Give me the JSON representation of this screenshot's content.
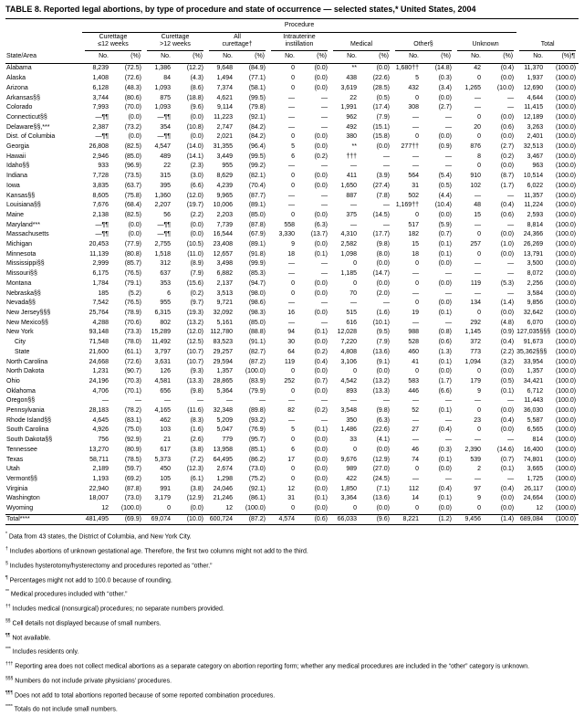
{
  "title": "TABLE 8. Reported legal abortions, by type of procedure and state of occurrence — selected states,* United States, 2004",
  "table": {
    "procedure_label": "Procedure",
    "state_area_label": "State/Area",
    "col_groups": [
      {
        "line1": "Curettage",
        "line2": "≤12 weeks"
      },
      {
        "line1": "Curettage",
        "line2": ">12 weeks"
      },
      {
        "line1": "All",
        "line2": "curettage†"
      },
      {
        "line1": "Intrauterine",
        "line2": "instillation"
      },
      {
        "line1": "Medical",
        "line2": ""
      },
      {
        "line1": "Other§",
        "line2": ""
      },
      {
        "line1": "Unknown",
        "line2": ""
      },
      {
        "line1": "Total",
        "line2": ""
      }
    ],
    "sub_headers": {
      "no": "No.",
      "pct": "(%)",
      "pct_total": "(%)¶"
    },
    "rows": [
      {
        "state": "Alabama",
        "cells": [
          "8,239",
          "(72.5)",
          "1,386",
          "(12.2)",
          "9,648",
          "(84.9)",
          "0",
          "(0.0)",
          "**",
          "(0.0)",
          "1,680††",
          "(14.8)",
          "42",
          "(0.4)",
          "11,370",
          "(100.0)"
        ]
      },
      {
        "state": "Alaska",
        "cells": [
          "1,408",
          "(72.6)",
          "84",
          "(4.3)",
          "1,494",
          "(77.1)",
          "0",
          "(0.0)",
          "438",
          "(22.6)",
          "5",
          "(0.3)",
          "0",
          "(0.0)",
          "1,937",
          "(100.0)"
        ]
      },
      {
        "state": "Arizona",
        "cells": [
          "6,128",
          "(48.3)",
          "1,093",
          "(8.6)",
          "7,374",
          "(58.1)",
          "0",
          "(0.0)",
          "3,619",
          "(28.5)",
          "432",
          "(3.4)",
          "1,265",
          "(10.0)",
          "12,690",
          "(100.0)"
        ]
      },
      {
        "state": "Arkansas§§",
        "cells": [
          "3,744",
          "(80.6)",
          "875",
          "(18.8)",
          "4,621",
          "(99.5)",
          "—",
          "—",
          "22",
          "(0.5)",
          "0",
          "(0.0)",
          "—",
          "—",
          "4,644",
          "(100.0)"
        ]
      },
      {
        "state": "Colorado",
        "cells": [
          "7,993",
          "(70.0)",
          "1,093",
          "(9.6)",
          "9,114",
          "(79.8)",
          "—",
          "—",
          "1,991",
          "(17.4)",
          "308",
          "(2.7)",
          "—",
          "—",
          "11,415",
          "(100.0)"
        ]
      },
      {
        "state": "Connecticut§§",
        "cells": [
          "—¶¶",
          "(0.0)",
          "—¶¶",
          "(0.0)",
          "11,223",
          "(92.1)",
          "—",
          "—",
          "962",
          "(7.9)",
          "—",
          "—",
          "0",
          "(0.0)",
          "12,189",
          "(100.0)"
        ]
      },
      {
        "state": "Delaware§§,***",
        "cells": [
          "2,387",
          "(73.2)",
          "354",
          "(10.8)",
          "2,747",
          "(84.2)",
          "—",
          "—",
          "492",
          "(15.1)",
          "—",
          "—",
          "20",
          "(0.6)",
          "3,263",
          "(100.0)"
        ]
      },
      {
        "state": "Dist. of Columbia",
        "cells": [
          "—¶¶",
          "(0.0)",
          "—¶¶",
          "(0.0)",
          "2,021",
          "(84.2)",
          "0",
          "(0.0)",
          "380",
          "(15.8)",
          "0",
          "(0.0)",
          "0",
          "(0.0)",
          "2,401",
          "(100.0)"
        ]
      },
      {
        "state": "Georgia",
        "cells": [
          "26,808",
          "(82.5)",
          "4,547",
          "(14.0)",
          "31,355",
          "(96.4)",
          "5",
          "(0.0)",
          "**",
          "(0.0)",
          "277††",
          "(0.9)",
          "876",
          "(2.7)",
          "32,513",
          "(100.0)"
        ]
      },
      {
        "state": "Hawaii",
        "cells": [
          "2,946",
          "(85.0)",
          "489",
          "(14.1)",
          "3,449",
          "(99.5)",
          "6",
          "(0.2)",
          "†††",
          "—",
          "—",
          "—",
          "8",
          "(0.2)",
          "3,467",
          "(100.0)"
        ]
      },
      {
        "state": "Idaho§§",
        "cells": [
          "933",
          "(96.9)",
          "22",
          "(2.3)",
          "955",
          "(99.2)",
          "—",
          "—",
          "—",
          "—",
          "—",
          "—",
          "0",
          "(0.0)",
          "963",
          "(100.0)"
        ]
      },
      {
        "state": "Indiana",
        "cells": [
          "7,728",
          "(73.5)",
          "315",
          "(3.0)",
          "8,629",
          "(82.1)",
          "0",
          "(0.0)",
          "411",
          "(3.9)",
          "564",
          "(5.4)",
          "910",
          "(8.7)",
          "10,514",
          "(100.0)"
        ]
      },
      {
        "state": "Iowa",
        "cells": [
          "3,835",
          "(63.7)",
          "395",
          "(6.6)",
          "4,239",
          "(70.4)",
          "0",
          "(0.0)",
          "1,650",
          "(27.4)",
          "31",
          "(0.5)",
          "102",
          "(1.7)",
          "6,022",
          "(100.0)"
        ]
      },
      {
        "state": "Kansas§§",
        "cells": [
          "8,605",
          "(75.8)",
          "1,360",
          "(12.0)",
          "9,965",
          "(87.7)",
          "—",
          "—",
          "887",
          "(7.8)",
          "502",
          "(4.4)",
          "—",
          "—",
          "11,357",
          "(100.0)"
        ]
      },
      {
        "state": "Louisiana§§",
        "cells": [
          "7,676",
          "(68.4)",
          "2,207",
          "(19.7)",
          "10,006",
          "(89.1)",
          "—",
          "—",
          "—",
          "—",
          "1,169††",
          "(10.4)",
          "48",
          "(0.4)",
          "11,224",
          "(100.0)"
        ]
      },
      {
        "state": "Maine",
        "cells": [
          "2,138",
          "(82.5)",
          "56",
          "(2.2)",
          "2,203",
          "(85.0)",
          "0",
          "(0.0)",
          "375",
          "(14.5)",
          "0",
          "(0.0)",
          "15",
          "(0.6)",
          "2,593",
          "(100.0)"
        ]
      },
      {
        "state": "Maryland***",
        "cells": [
          "—¶¶",
          "(0.0)",
          "—¶¶",
          "(0.0)",
          "7,739",
          "(87.8)",
          "558",
          "(6.3)",
          "—",
          "—",
          "517",
          "(5.9)",
          "—",
          "—",
          "8,814",
          "(100.0)"
        ]
      },
      {
        "state": "Massachusetts",
        "cells": [
          "—¶¶",
          "(0.0)",
          "—¶¶",
          "(0.0)",
          "16,544",
          "(67.9)",
          "3,330",
          "(13.7)",
          "4,310",
          "(17.7)",
          "182",
          "(0.7)",
          "0",
          "(0.0)",
          "24,366",
          "(100.0)"
        ]
      },
      {
        "state": "Michigan",
        "cells": [
          "20,453",
          "(77.9)",
          "2,755",
          "(10.5)",
          "23,408",
          "(89.1)",
          "9",
          "(0.0)",
          "2,582",
          "(9.8)",
          "15",
          "(0.1)",
          "257",
          "(1.0)",
          "26,269",
          "(100.0)"
        ]
      },
      {
        "state": "Minnesota",
        "cells": [
          "11,139",
          "(80.8)",
          "1,518",
          "(11.0)",
          "12,657",
          "(91.8)",
          "18",
          "(0.1)",
          "1,098",
          "(8.0)",
          "18",
          "(0.1)",
          "0",
          "(0.0)",
          "13,791",
          "(100.0)"
        ]
      },
      {
        "state": "Mississippi§§",
        "cells": [
          "2,999",
          "(85.7)",
          "312",
          "(8.9)",
          "3,498",
          "(99.9)",
          "—",
          "—",
          "0",
          "(0.0)",
          "0",
          "(0.0)",
          "—",
          "—",
          "3,500",
          "(100.0)"
        ]
      },
      {
        "state": "Missouri§§",
        "cells": [
          "6,175",
          "(76.5)",
          "637",
          "(7.9)",
          "6,882",
          "(85.3)",
          "—",
          "—",
          "1,185",
          "(14.7)",
          "—",
          "—",
          "—",
          "—",
          "8,072",
          "(100.0)"
        ]
      },
      {
        "state": "Montana",
        "cells": [
          "1,784",
          "(79.1)",
          "353",
          "(15.6)",
          "2,137",
          "(94.7)",
          "0",
          "(0.0)",
          "0",
          "(0.0)",
          "0",
          "(0.0)",
          "119",
          "(5.3)",
          "2,256",
          "(100.0)"
        ]
      },
      {
        "state": "Nebraska§§",
        "cells": [
          "185",
          "(5.2)",
          "6",
          "(0.2)",
          "3,513",
          "(98.0)",
          "0",
          "(0.0)",
          "70",
          "(2.0)",
          "—",
          "—",
          "—",
          "—",
          "3,584",
          "(100.0)"
        ]
      },
      {
        "state": "Nevada§§",
        "cells": [
          "7,542",
          "(76.5)",
          "955",
          "(9.7)",
          "9,721",
          "(98.6)",
          "—",
          "—",
          "—",
          "—",
          "0",
          "(0.0)",
          "134",
          "(1.4)",
          "9,856",
          "(100.0)"
        ]
      },
      {
        "state": "New Jersey§§§",
        "cells": [
          "25,764",
          "(78.9)",
          "6,315",
          "(19.3)",
          "32,092",
          "(98.3)",
          "16",
          "(0.0)",
          "515",
          "(1.6)",
          "19",
          "(0.1)",
          "0",
          "(0.0)",
          "32,642",
          "(100.0)"
        ]
      },
      {
        "state": "New Mexico§§",
        "cells": [
          "4,288",
          "(70.6)",
          "802",
          "(13.2)",
          "5,161",
          "(85.0)",
          "—",
          "—",
          "616",
          "(10.1)",
          "—",
          "—",
          "292",
          "(4.8)",
          "6,070",
          "(100.0)"
        ]
      },
      {
        "state": "New York",
        "cells": [
          "93,148",
          "(73.3)",
          "15,289",
          "(12.0)",
          "112,780",
          "(88.8)",
          "94",
          "(0.1)",
          "12,028",
          "(9.5)",
          "988",
          "(0.8)",
          "1,145",
          "(0.9)",
          "127,035§§§",
          "(100.0)"
        ]
      },
      {
        "state": "City",
        "indent": true,
        "cells": [
          "71,548",
          "(78.0)",
          "11,492",
          "(12.5)",
          "83,523",
          "(91.1)",
          "30",
          "(0.0)",
          "7,220",
          "(7.9)",
          "528",
          "(0.6)",
          "372",
          "(0.4)",
          "91,673",
          "(100.0)"
        ]
      },
      {
        "state": "State",
        "indent": true,
        "cells": [
          "21,600",
          "(61.1)",
          "3,797",
          "(10.7)",
          "29,257",
          "(82.7)",
          "64",
          "(0.2)",
          "4,808",
          "(13.6)",
          "460",
          "(1.3)",
          "773",
          "(2.2)",
          "35,362§§§",
          "(100.0)"
        ]
      },
      {
        "state": "North Carolina",
        "cells": [
          "24,668",
          "(72.6)",
          "3,631",
          "(10.7)",
          "29,594",
          "(87.2)",
          "119",
          "(0.4)",
          "3,106",
          "(9.1)",
          "41",
          "(0.1)",
          "1,094",
          "(3.2)",
          "33,954",
          "(100.0)"
        ]
      },
      {
        "state": "North Dakota",
        "cells": [
          "1,231",
          "(90.7)",
          "126",
          "(9.3)",
          "1,357",
          "(100.0)",
          "0",
          "(0.0)",
          "0",
          "(0.0)",
          "0",
          "(0.0)",
          "0",
          "(0.0)",
          "1,357",
          "(100.0)"
        ]
      },
      {
        "state": "Ohio",
        "cells": [
          "24,196",
          "(70.3)",
          "4,581",
          "(13.3)",
          "28,865",
          "(83.9)",
          "252",
          "(0.7)",
          "4,542",
          "(13.2)",
          "583",
          "(1.7)",
          "179",
          "(0.5)",
          "34,421",
          "(100.0)"
        ]
      },
      {
        "state": "Oklahoma",
        "cells": [
          "4,706",
          "(70.1)",
          "656",
          "(9.8)",
          "5,364",
          "(79.9)",
          "0",
          "(0.0)",
          "893",
          "(13.3)",
          "446",
          "(6.6)",
          "9",
          "(0.1)",
          "6,712",
          "(100.0)"
        ]
      },
      {
        "state": "Oregon§§",
        "cells": [
          "—",
          "—",
          "—",
          "—",
          "—",
          "—",
          "—",
          "—",
          "—",
          "—",
          "—",
          "—",
          "—",
          "—",
          "11,443",
          "(100.0)"
        ]
      },
      {
        "state": "Pennsylvania",
        "cells": [
          "28,183",
          "(78.2)",
          "4,165",
          "(11.6)",
          "32,348",
          "(89.8)",
          "82",
          "(0.2)",
          "3,548",
          "(9.8)",
          "52",
          "(0.1)",
          "0",
          "(0.0)",
          "36,030",
          "(100.0)"
        ]
      },
      {
        "state": "Rhode Island§§",
        "cells": [
          "4,645",
          "(83.1)",
          "462",
          "(8.3)",
          "5,209",
          "(93.2)",
          "—",
          "—",
          "350",
          "(6.3)",
          "—",
          "—",
          "23",
          "(0.4)",
          "5,587",
          "(100.0)"
        ]
      },
      {
        "state": "South Carolina",
        "cells": [
          "4,926",
          "(75.0)",
          "103",
          "(1.6)",
          "5,047",
          "(76.9)",
          "5",
          "(0.1)",
          "1,486",
          "(22.6)",
          "27",
          "(0.4)",
          "0",
          "(0.0)",
          "6,565",
          "(100.0)"
        ]
      },
      {
        "state": "South Dakota§§",
        "cells": [
          "756",
          "(92.9)",
          "21",
          "(2.6)",
          "779",
          "(95.7)",
          "0",
          "(0.0)",
          "33",
          "(4.1)",
          "—",
          "—",
          "—",
          "—",
          "814",
          "(100.0)"
        ]
      },
      {
        "state": "Tennessee",
        "cells": [
          "13,270",
          "(80.9)",
          "617",
          "(3.8)",
          "13,958",
          "(85.1)",
          "6",
          "(0.0)",
          "0",
          "(0.0)",
          "46",
          "(0.3)",
          "2,390",
          "(14.6)",
          "16,400",
          "(100.0)"
        ]
      },
      {
        "state": "Texas",
        "cells": [
          "58,711",
          "(78.5)",
          "5,373",
          "(7.2)",
          "64,495",
          "(86.2)",
          "17",
          "(0.0)",
          "9,676",
          "(12.9)",
          "74",
          "(0.1)",
          "539",
          "(0.7)",
          "74,801",
          "(100.0)"
        ]
      },
      {
        "state": "Utah",
        "cells": [
          "2,189",
          "(59.7)",
          "450",
          "(12.3)",
          "2,674",
          "(73.0)",
          "0",
          "(0.0)",
          "989",
          "(27.0)",
          "0",
          "(0.0)",
          "2",
          "(0.1)",
          "3,665",
          "(100.0)"
        ]
      },
      {
        "state": "Vermont§§",
        "cells": [
          "1,193",
          "(69.2)",
          "105",
          "(6.1)",
          "1,298",
          "(75.2)",
          "0",
          "(0.0)",
          "422",
          "(24.5)",
          "—",
          "—",
          "—",
          "—",
          "1,725",
          "(100.0)"
        ]
      },
      {
        "state": "Virginia",
        "cells": [
          "22,940",
          "(87.8)",
          "991",
          "(3.8)",
          "24,046",
          "(92.1)",
          "12",
          "(0.0)",
          "1,850",
          "(7.1)",
          "112",
          "(0.4)",
          "97",
          "(0.4)",
          "26,117",
          "(100.0)"
        ]
      },
      {
        "state": "Washington",
        "cells": [
          "18,007",
          "(73.0)",
          "3,179",
          "(12.9)",
          "21,246",
          "(86.1)",
          "31",
          "(0.1)",
          "3,364",
          "(13.6)",
          "14",
          "(0.1)",
          "9",
          "(0.0)",
          "24,664",
          "(100.0)"
        ]
      },
      {
        "state": "Wyoming",
        "cells": [
          "12",
          "(100.0)",
          "0",
          "(0.0)",
          "12",
          "(100.0)",
          "0",
          "(0.0)",
          "0",
          "(0.0)",
          "0",
          "(0.0)",
          "0",
          "(0.0)",
          "12",
          "(100.0)"
        ]
      }
    ],
    "total_row": {
      "state": "Total****",
      "cells": [
        "481,495",
        "(69.9)",
        "69,074",
        "(10.0)",
        "600,724",
        "(87.2)",
        "4,574",
        "(0.6)",
        "66,033",
        "(9.6)",
        "8,221",
        "(1.2)",
        "9,456",
        "(1.4)",
        "689,084",
        "(100.0)"
      ]
    }
  },
  "footnotes": [
    {
      "marker": "*",
      "text": "Data from 43 states, the District of Columbia, and New York City."
    },
    {
      "marker": "†",
      "text": "Includes abortions of unknown gestational age. Therefore, the first two columns might not add to the third."
    },
    {
      "marker": "§",
      "text": "Includes hysterotomy/hysterectomy and procedures reported as “other.”"
    },
    {
      "marker": "¶",
      "text": "Percentages might not add to 100.0 because of rounding."
    },
    {
      "marker": "**",
      "text": "Medical procedures included with “other.”"
    },
    {
      "marker": "††",
      "text": "Includes medical (nonsurgical) procedures; no separate numbers provided."
    },
    {
      "marker": "§§",
      "text": "Cell details not displayed because of small numbers."
    },
    {
      "marker": "¶¶",
      "text": "Not available."
    },
    {
      "marker": "***",
      "text": "Includes residents only."
    },
    {
      "marker": "†††",
      "text": "Reporting area does not collect medical abortions as a separate category on abortion reporting form; whether any medical procedures are included in the “other” category is unknown."
    },
    {
      "marker": "§§§",
      "text": "Numbers do not include private physicians’ procedures."
    },
    {
      "marker": "¶¶¶",
      "text": "Does not add to total abortions reported because of some reported combination procedures."
    },
    {
      "marker": "****",
      "text": "Totals do not include small numbers."
    }
  ]
}
